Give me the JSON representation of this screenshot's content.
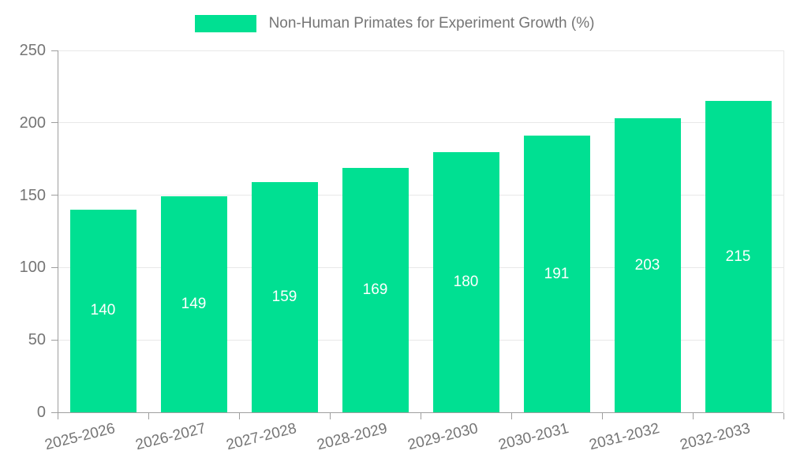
{
  "chart_data": {
    "type": "bar",
    "title": "Non-Human Primates for Experiment Growth (%)",
    "categories": [
      "2025-2026",
      "2026-2027",
      "2027-2028",
      "2028-2029",
      "2029-2030",
      "2030-2031",
      "2031-2032",
      "2032-2033"
    ],
    "values": [
      140,
      149,
      159,
      169,
      180,
      191,
      203,
      215
    ],
    "xlabel": "",
    "ylabel": "",
    "ylim": [
      0,
      250
    ],
    "ytick_step": 50,
    "grid": true,
    "legend_position": "top-center",
    "value_labels": "inside-center",
    "colors": {
      "bar": "#00e092",
      "axis": "#9e9e9e",
      "grid": "#e8e8e8",
      "text": "#757575",
      "value_label_text": "#ffffff",
      "background": "#ffffff"
    }
  }
}
